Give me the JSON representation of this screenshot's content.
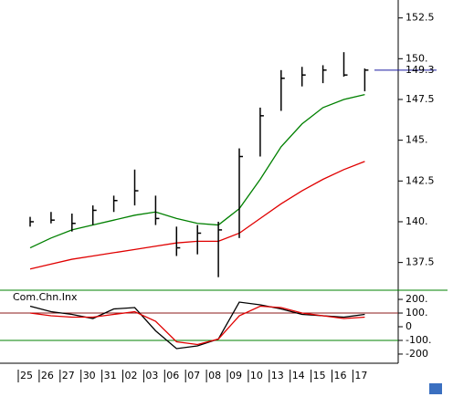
{
  "chart_data": [
    {
      "type": "hlc",
      "categories": [
        "25",
        "26",
        "27",
        "30",
        "31",
        "02",
        "03",
        "06",
        "07",
        "08",
        "09",
        "10",
        "13",
        "14",
        "15",
        "16",
        "17"
      ],
      "high": [
        140.3,
        140.6,
        140.5,
        141.0,
        141.6,
        143.2,
        141.6,
        139.7,
        139.8,
        140.0,
        144.5,
        147.0,
        149.3,
        149.5,
        149.6,
        150.4,
        149.4
      ],
      "low": [
        139.7,
        139.9,
        139.4,
        139.8,
        140.6,
        141.0,
        139.8,
        137.9,
        138.0,
        136.6,
        139.0,
        144.0,
        146.8,
        148.3,
        148.5,
        148.9,
        148.0
      ],
      "close": [
        140.0,
        140.1,
        139.9,
        140.7,
        141.3,
        141.9,
        140.2,
        138.4,
        139.3,
        139.5,
        144.0,
        146.5,
        148.8,
        149.0,
        149.3,
        149.0,
        149.3
      ],
      "color": "#000000",
      "series": [
        {
          "color": "#008000",
          "values": [
            138.4,
            139.0,
            139.5,
            139.8,
            140.1,
            140.4,
            140.6,
            140.2,
            139.9,
            139.8,
            140.8,
            142.6,
            144.6,
            146.0,
            147.0,
            147.5,
            147.8
          ]
        },
        {
          "color": "#e00000",
          "values": [
            137.1,
            137.4,
            137.7,
            137.9,
            138.1,
            138.3,
            138.5,
            138.7,
            138.8,
            138.8,
            139.3,
            140.2,
            141.1,
            141.9,
            142.6,
            143.2,
            143.7
          ]
        }
      ],
      "last_price": 149.3,
      "last_color": "#1a1aa0",
      "ylim": [
        135.8,
        153.6
      ],
      "yticks": [
        137.5,
        {
          "value": 140,
          "label": "140."
        },
        142.5,
        {
          "value": 145,
          "label": "145."
        },
        147.5,
        {
          "value": 150,
          "label": "150."
        },
        152.5
      ]
    },
    {
      "type": "line",
      "title": "Com.Chn.Inx",
      "series": [
        {
          "color": "#000000",
          "values": [
            150,
            110,
            90,
            60,
            130,
            140,
            -30,
            -160,
            -140,
            -90,
            180,
            160,
            130,
            90,
            80,
            70,
            90
          ]
        },
        {
          "color": "#e00000",
          "values": [
            100,
            80,
            70,
            70,
            90,
            110,
            40,
            -110,
            -130,
            -90,
            80,
            150,
            140,
            100,
            80,
            60,
            70
          ]
        }
      ],
      "levels": [
        {
          "value": 100,
          "color": "#8b1a1a"
        },
        {
          "value": -100,
          "color": "#008000"
        }
      ],
      "ylim": [
        -267,
        267
      ],
      "yticks": [
        {
          "value": 200,
          "label": "200."
        },
        {
          "value": 100,
          "label": "100."
        },
        0,
        {
          "value": -100,
          "label": "-100."
        },
        -200
      ]
    }
  ]
}
